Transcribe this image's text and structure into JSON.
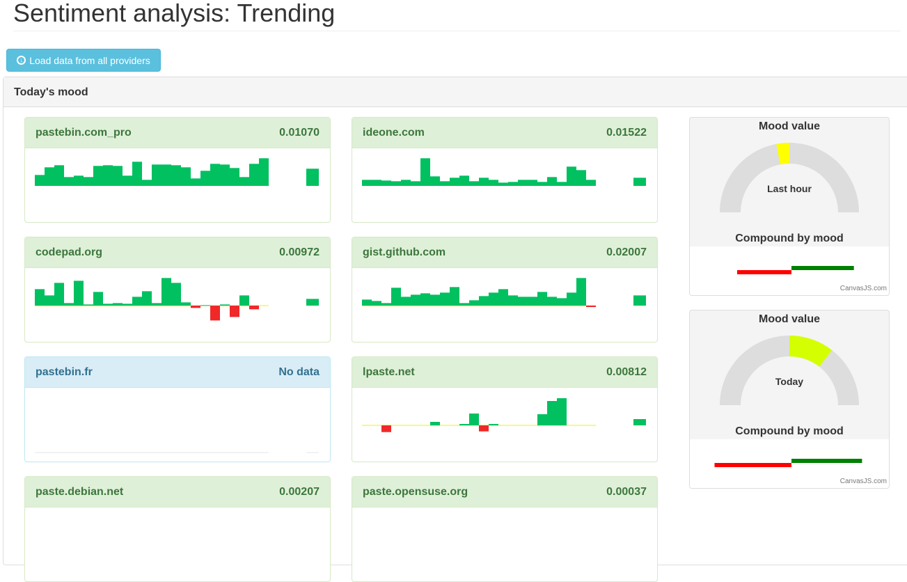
{
  "page": {
    "title": "Sentiment analysis: Trending"
  },
  "toolbar": {
    "load_label": "Load data from all providers",
    "load_icon": "download-circle-icon"
  },
  "panel": {
    "title": "Today's mood"
  },
  "colors": {
    "positive": "#00c060",
    "negative": "#f02828",
    "neutral": "#f0f000",
    "gauge_track": "#dddddd",
    "compound_negative": "#ff0000",
    "compound_positive": "#008000"
  },
  "providers": [
    {
      "name": "pastebin.com_pro",
      "value": "0.01070",
      "status": "success",
      "bars": [
        47,
        80,
        89,
        38,
        44,
        38,
        86,
        89,
        86,
        44,
        104,
        26,
        92,
        92,
        89,
        80,
        32,
        65,
        95,
        92,
        77,
        38,
        95,
        119
      ],
      "total": 74
    },
    {
      "name": "ideone.com",
      "value": "0.01522",
      "status": "success",
      "bars": [
        26,
        26,
        23,
        20,
        26,
        20,
        119,
        41,
        20,
        35,
        44,
        20,
        35,
        26,
        14,
        17,
        26,
        26,
        17,
        38,
        17,
        83,
        68,
        26
      ],
      "total": 35
    },
    {
      "name": "codepad.org",
      "value": "0.00972",
      "status": "success",
      "bars": [
        71,
        44,
        98,
        11,
        107,
        5,
        59,
        8,
        11,
        8,
        38,
        62,
        11,
        119,
        98,
        14,
        -10,
        2,
        -64,
        5,
        -49,
        44,
        -16,
        0
      ],
      "total": 29
    },
    {
      "name": "gist.github.com",
      "value": "0.02007",
      "status": "success",
      "bars": [
        26,
        20,
        11,
        77,
        38,
        47,
        53,
        47,
        56,
        80,
        11,
        23,
        41,
        56,
        71,
        44,
        38,
        38,
        59,
        38,
        32,
        56,
        119,
        -6
      ],
      "total": 44
    },
    {
      "name": "pastebin.fr",
      "value": "No data",
      "status": "info",
      "bars": [],
      "total": null
    },
    {
      "name": "lpaste.net",
      "value": "0.00812",
      "status": "success",
      "bars": [
        0,
        0,
        -29,
        0,
        0,
        0,
        0,
        15,
        0,
        0,
        6,
        51,
        -26,
        6,
        0,
        0,
        0,
        0,
        48,
        105,
        117,
        0,
        0,
        0
      ],
      "total": 27
    },
    {
      "name": "paste.debian.net",
      "value": "0.00207",
      "status": "success",
      "bars": [],
      "total": null
    },
    {
      "name": "paste.opensuse.org",
      "value": "0.00037",
      "status": "success",
      "bars": [],
      "total": null
    }
  ],
  "gauges": [
    {
      "title": "Mood value",
      "label": "Last hour",
      "segment": [
        0.44,
        0.5
      ],
      "color": "#ffff00",
      "compound_title": "Compound by mood",
      "compound": {
        "negative": -0.6,
        "positive": 0.69
      },
      "credit": "CanvasJS.com"
    },
    {
      "title": "Mood value",
      "label": "Today",
      "segment": [
        0.5,
        0.71
      ],
      "color": "#d4ff00",
      "compound_title": "Compound by mood",
      "compound": {
        "negative": -0.85,
        "positive": 0.78
      },
      "credit": "CanvasJS.com"
    }
  ]
}
